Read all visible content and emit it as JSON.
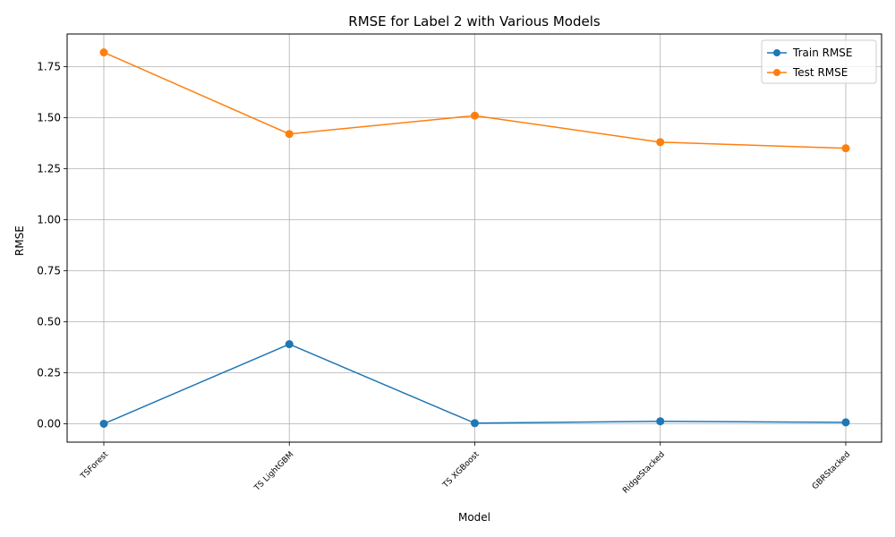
{
  "chart_data": {
    "type": "line",
    "title": "RMSE for Label 2 with Various Models",
    "xlabel": "Model",
    "ylabel": "RMSE",
    "categories": [
      "TSForest",
      "TS LightGBM",
      "TS XGBoost",
      "RidgeStacked",
      "GBRStacked"
    ],
    "series": [
      {
        "name": "Train RMSE",
        "color": "#1f77b4",
        "values": [
          0.0,
          0.39,
          0.003,
          0.012,
          0.007
        ]
      },
      {
        "name": "Test RMSE",
        "color": "#ff7f0e",
        "values": [
          1.82,
          1.42,
          1.51,
          1.38,
          1.35
        ]
      }
    ],
    "ylim": [
      -0.09,
      1.91
    ],
    "yticks": [
      "0.00",
      "0.25",
      "0.50",
      "0.75",
      "1.00",
      "1.25",
      "1.50",
      "1.75"
    ],
    "grid": true,
    "legend_position": "top-right",
    "marker": "circle"
  }
}
